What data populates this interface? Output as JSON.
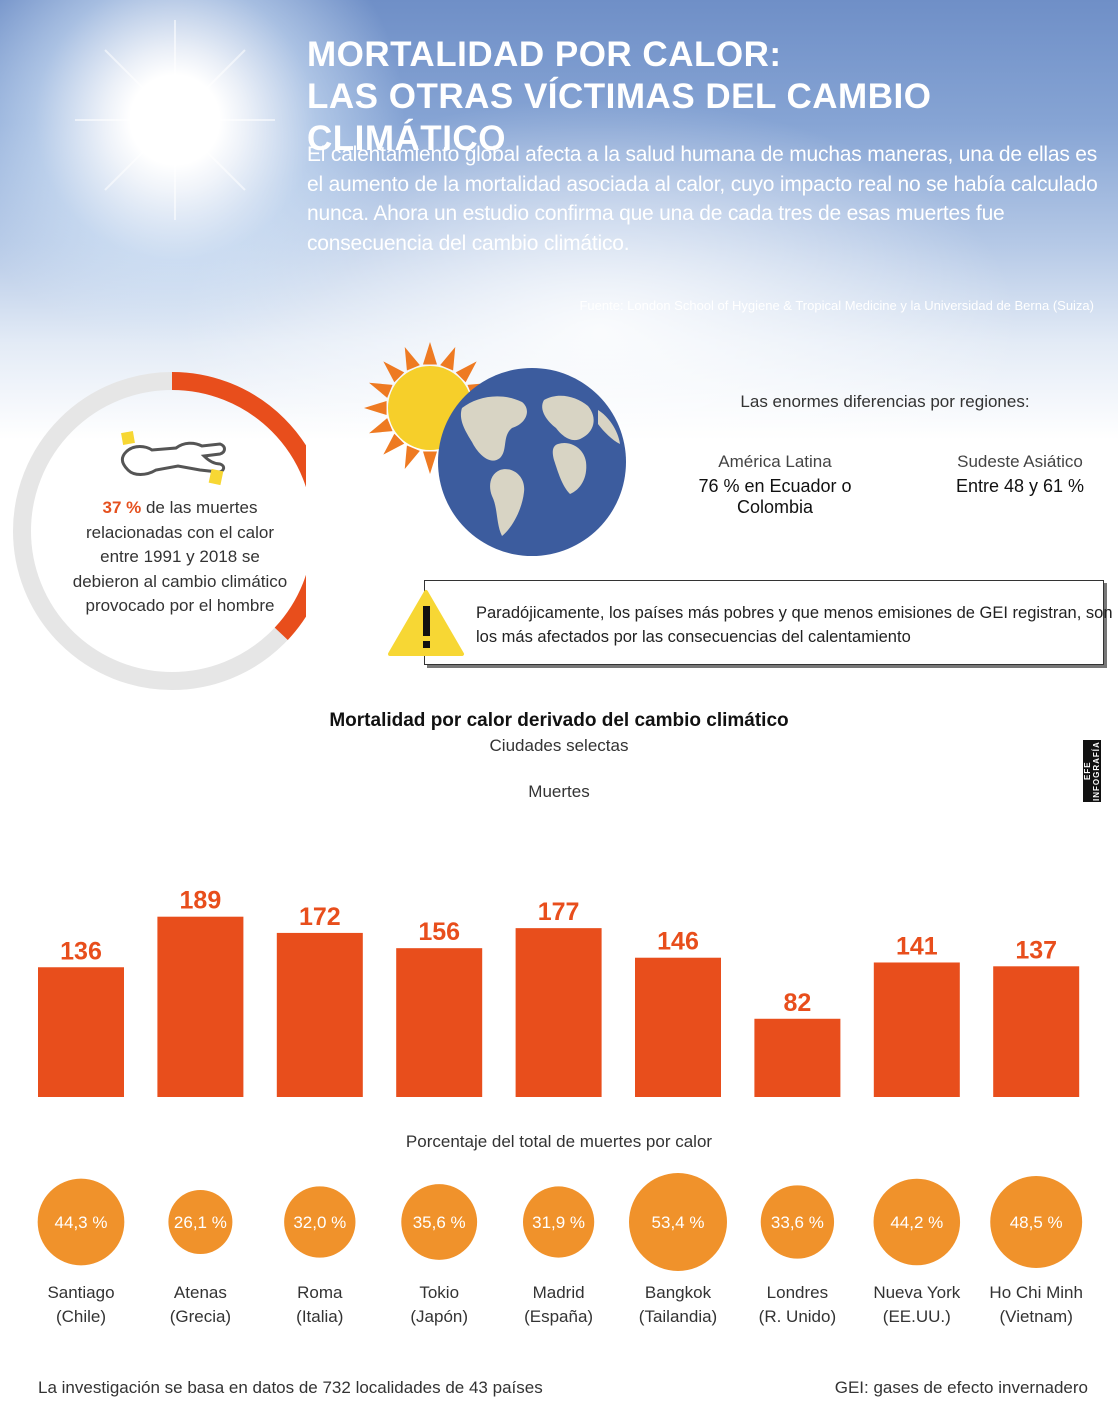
{
  "header": {
    "title_line1": "MORTALIDAD POR CALOR:",
    "title_line2": "LAS OTRAS VÍCTIMAS DEL CAMBIO CLIMÁTICO",
    "intro": "El calentamiento global afecta a la salud humana de muchas maneras, una de ellas es el aumento de la mortalidad asociada al calor, cuyo impacto real no se había calculado nunca. Ahora un estudio confirma que una de cada tres de esas muertes fue consecuencia del cambio climático.",
    "source": "Fuente: London School of Hygiene & Tropical Medicine y la Universidad de Berna (Suiza)"
  },
  "ring": {
    "percent": 37,
    "highlight": "37 %",
    "text": " de las muertes relacionadas con el calor entre 1991 y 2018 se debieron al cambio climático provocado por el hombre"
  },
  "regions": {
    "heading": "Las enormes diferencias por regiones:",
    "items": [
      {
        "name": "América Latina",
        "value": "76 % en Ecuador o Colombia"
      },
      {
        "name": "Sudeste Asiático",
        "value": "Entre 48 y 61 %"
      }
    ]
  },
  "warning": {
    "text": "Paradójicamente, los países más pobres y que menos emisiones de GEI registran, son los más afectados por las consecuencias del calentamiento"
  },
  "chart_data": {
    "type": "bar",
    "title": "Mortalidad por calor derivado del cambio climático",
    "subtitle": "Ciudades selectas",
    "ylabel": "Muertes",
    "categories": [
      "Santiago\n(Chile)",
      "Atenas\n(Grecia)",
      "Roma\n(Italia)",
      "Tokio\n(Japón)",
      "Madrid\n(España)",
      "Bangkok\n(Tailandia)",
      "Londres\n(R. Unido)",
      "Nueva York\n(EE.UU.)",
      "Ho Chi Minh\n(Vietnam)"
    ],
    "values": [
      136,
      189,
      172,
      156,
      177,
      146,
      82,
      141,
      137
    ],
    "percent_label": "Porcentaje del total de muertes por calor",
    "percent_values": [
      44.3,
      26.1,
      32.0,
      35.6,
      31.9,
      53.4,
      33.6,
      44.2,
      48.5
    ],
    "percent_labels": [
      "44,3 %",
      "26,1 %",
      "32,0 %",
      "35,6 %",
      "31,9 %",
      "53,4 %",
      "33,6 %",
      "44,2 %",
      "48,5 %"
    ],
    "bar_color": "#e84e1c",
    "circle_color": "#f0922b"
  },
  "footer": {
    "left": "La investigación se basa en datos de 732 localidades de 43 países",
    "right": "GEI: gases de efecto invernadero"
  },
  "credit": "EFE INFOGRAFÍA",
  "colors": {
    "accent": "#e5501e",
    "ring_track": "#e6e6e6",
    "warning_yellow": "#f7d734",
    "globe_ocean": "#3c5c9e",
    "globe_land": "#d8d4c4",
    "sun_yellow": "#f6cf2a",
    "sun_rays": "#ee7a22"
  },
  "icons": {
    "sun": "sun-icon",
    "globe": "globe-icon",
    "body_outline": "crime-scene-body-icon",
    "warning": "warning-icon"
  }
}
